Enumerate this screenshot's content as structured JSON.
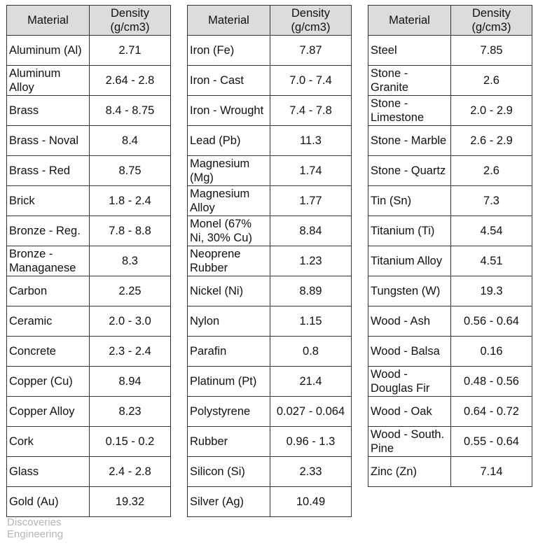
{
  "tables": [
    {
      "columns": [
        "Material",
        "Density (g/cm3)"
      ],
      "rows": [
        [
          "Aluminum (Al)",
          "2.71"
        ],
        [
          "Aluminum Alloy",
          "2.64 - 2.8"
        ],
        [
          "Brass",
          "8.4 - 8.75"
        ],
        [
          "Brass - Noval",
          "8.4"
        ],
        [
          "Brass - Red",
          "8.75"
        ],
        [
          "Brick",
          "1.8 - 2.4"
        ],
        [
          "Bronze - Reg.",
          "7.8 - 8.8"
        ],
        [
          "Bronze - Managanese",
          "8.3"
        ],
        [
          "Carbon",
          "2.25"
        ],
        [
          "Ceramic",
          "2.0 - 3.0"
        ],
        [
          "Concrete",
          "2.3 - 2.4"
        ],
        [
          "Copper (Cu)",
          "8.94"
        ],
        [
          "Copper Alloy",
          "8.23"
        ],
        [
          "Cork",
          "0.15 - 0.2"
        ],
        [
          "Glass",
          "2.4 - 2.8"
        ],
        [
          "Gold (Au)",
          "19.32"
        ]
      ]
    },
    {
      "columns": [
        "Material",
        "Density (g/cm3)"
      ],
      "rows": [
        [
          "Iron (Fe)",
          "7.87"
        ],
        [
          "Iron - Cast",
          "7.0 - 7.4"
        ],
        [
          "Iron - Wrought",
          "7.4 - 7.8"
        ],
        [
          "Lead (Pb)",
          "11.3"
        ],
        [
          "Magnesium (Mg)",
          "1.74"
        ],
        [
          "Magnesium Alloy",
          "1.77"
        ],
        [
          "Monel (67% Ni, 30% Cu)",
          "8.84"
        ],
        [
          "Neoprene Rubber",
          "1.23"
        ],
        [
          "Nickel (Ni)",
          "8.89"
        ],
        [
          "Nylon",
          "1.15"
        ],
        [
          "Parafin",
          "0.8"
        ],
        [
          "Platinum (Pt)",
          "21.4"
        ],
        [
          "Polystyrene",
          "0.027 - 0.064"
        ],
        [
          "Rubber",
          "0.96 - 1.3"
        ],
        [
          "Silicon (Si)",
          "2.33"
        ],
        [
          "Silver (Ag)",
          "10.49"
        ]
      ]
    },
    {
      "columns": [
        "Material",
        "Density (g/cm3)"
      ],
      "rows": [
        [
          "Steel",
          "7.85"
        ],
        [
          "Stone - Granite",
          "2.6"
        ],
        [
          "Stone - Limestone",
          "2.0 - 2.9"
        ],
        [
          "Stone - Marble",
          "2.6 - 2.9"
        ],
        [
          "Stone - Quartz",
          "2.6"
        ],
        [
          "Tin (Sn)",
          "7.3"
        ],
        [
          "Titanium (Ti)",
          "4.54"
        ],
        [
          "Titanium Alloy",
          "4.51"
        ],
        [
          "Tungsten (W)",
          "19.3"
        ],
        [
          "Wood - Ash",
          "0.56 - 0.64"
        ],
        [
          "Wood - Balsa",
          "0.16"
        ],
        [
          "Wood - Douglas Fir",
          "0.48 - 0.56"
        ],
        [
          "Wood - Oak",
          "0.64 - 0.72"
        ],
        [
          "Wood - South. Pine",
          "0.55 - 0.64"
        ],
        [
          "Zinc (Zn)",
          "7.14"
        ]
      ]
    }
  ],
  "watermark": "Discoveries Engineering"
}
